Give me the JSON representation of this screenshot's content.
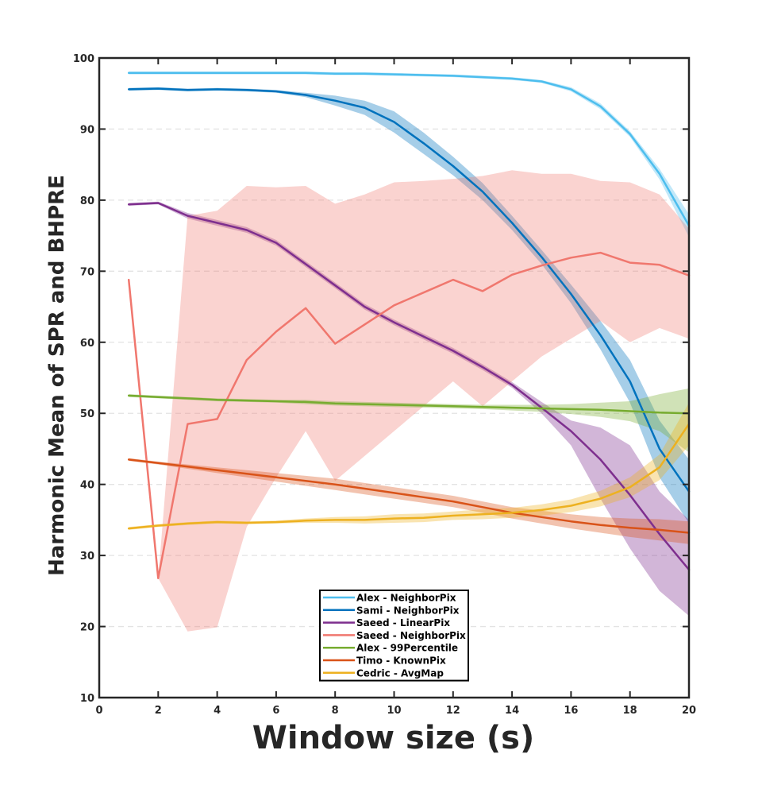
{
  "chart_data": {
    "type": "line",
    "xlabel": "Window size (s)",
    "ylabel": "Harmonic Mean of SPR and BHPRE",
    "xlim": [
      0,
      20
    ],
    "ylim": [
      10,
      100
    ],
    "xticks": [
      "0",
      "2",
      "4",
      "6",
      "8",
      "10",
      "12",
      "14",
      "16",
      "18",
      "20"
    ],
    "yticks": [
      "10",
      "20",
      "30",
      "40",
      "50",
      "60",
      "70",
      "80",
      "90",
      "100"
    ],
    "grid": "horizontal dashed",
    "legend_position": "bottom-center",
    "x": [
      1,
      2,
      3,
      4,
      5,
      6,
      7,
      8,
      9,
      10,
      11,
      12,
      13,
      14,
      15,
      16,
      17,
      18,
      19,
      20
    ],
    "series": [
      {
        "name": "Alex - NeighborPix",
        "color": "#4DBEEE",
        "values": [
          97.9,
          97.9,
          97.9,
          97.9,
          97.9,
          97.9,
          97.9,
          97.8,
          97.8,
          97.7,
          97.6,
          97.5,
          97.3,
          97.1,
          96.7,
          95.6,
          93.2,
          89.3,
          83.7,
          76.4
        ],
        "lower": [
          97.7,
          97.7,
          97.7,
          97.7,
          97.7,
          97.7,
          97.7,
          97.6,
          97.6,
          97.5,
          97.4,
          97.3,
          97.1,
          96.9,
          96.5,
          95.3,
          92.8,
          88.9,
          82.9,
          74.8
        ],
        "upper": [
          98.1,
          98.1,
          98.1,
          98.1,
          98.1,
          98.1,
          98.1,
          98.0,
          98.0,
          97.9,
          97.8,
          97.7,
          97.5,
          97.3,
          96.9,
          95.9,
          93.6,
          89.7,
          84.4,
          78.0
        ]
      },
      {
        "name": "Sami - NeighborPix",
        "color": "#0072BD",
        "values": [
          95.6,
          95.7,
          95.5,
          95.6,
          95.5,
          95.3,
          94.8,
          94.0,
          93.0,
          91.0,
          88.0,
          84.8,
          81.2,
          76.8,
          72.0,
          66.8,
          61.0,
          54.5,
          45.0,
          39.0
        ],
        "lower": [
          95.4,
          95.5,
          95.3,
          95.4,
          95.3,
          95.1,
          94.5,
          93.3,
          92.0,
          89.5,
          86.5,
          83.5,
          80.0,
          75.8,
          71.0,
          65.5,
          59.0,
          51.5,
          41.0,
          34.5
        ],
        "upper": [
          95.8,
          95.9,
          95.7,
          95.8,
          95.7,
          95.5,
          95.1,
          94.7,
          94.0,
          92.5,
          89.5,
          86.1,
          82.4,
          77.8,
          73.0,
          68.1,
          63.0,
          57.5,
          49.0,
          43.5
        ]
      },
      {
        "name": "Saeed - LinearPix",
        "color": "#7E2F8E",
        "values": [
          79.4,
          79.6,
          77.8,
          76.8,
          75.8,
          74.0,
          71.0,
          68.0,
          65.0,
          62.8,
          60.8,
          58.8,
          56.5,
          54.0,
          50.8,
          47.5,
          43.5,
          38.5,
          33.0,
          28.0
        ],
        "lower": [
          79.2,
          79.4,
          77.4,
          76.4,
          75.4,
          73.6,
          70.6,
          67.6,
          64.6,
          62.4,
          60.4,
          58.4,
          56.1,
          53.6,
          50.0,
          45.5,
          38.0,
          31.0,
          25.0,
          21.5
        ],
        "upper": [
          79.6,
          79.8,
          78.2,
          77.2,
          76.2,
          74.4,
          71.4,
          68.4,
          65.4,
          63.2,
          61.2,
          59.2,
          56.9,
          54.4,
          51.6,
          49.0,
          48.0,
          45.5,
          39.0,
          35.0
        ]
      },
      {
        "name": "Saeed - NeighborPix",
        "color": "#F0776E",
        "values": [
          68.8,
          26.8,
          48.5,
          49.2,
          57.5,
          61.5,
          64.8,
          59.8,
          62.5,
          65.2,
          67.0,
          68.8,
          67.2,
          69.5,
          70.8,
          71.9,
          72.6,
          71.2,
          70.9,
          69.4
        ],
        "lower": [
          68.8,
          26.8,
          19.3,
          19.9,
          34.0,
          41.0,
          47.5,
          40.5,
          44.0,
          47.5,
          51.0,
          54.5,
          51.0,
          54.5,
          58.0,
          60.5,
          63.0,
          60.0,
          62.0,
          60.5
        ],
        "upper": [
          68.8,
          26.8,
          77.8,
          78.5,
          82.0,
          81.8,
          82.0,
          79.5,
          80.8,
          82.5,
          82.7,
          83.0,
          83.4,
          84.2,
          83.7,
          83.7,
          82.7,
          82.5,
          80.8,
          76.0
        ]
      },
      {
        "name": "Alex - 99Percentile",
        "color": "#77AC30",
        "values": [
          52.5,
          52.3,
          52.1,
          51.9,
          51.8,
          51.7,
          51.6,
          51.4,
          51.3,
          51.2,
          51.1,
          51.0,
          50.9,
          50.8,
          50.7,
          50.6,
          50.5,
          50.3,
          50.1,
          50.0
        ],
        "lower": [
          52.3,
          52.1,
          51.9,
          51.7,
          51.6,
          51.5,
          51.3,
          51.1,
          51.0,
          50.9,
          50.8,
          50.7,
          50.6,
          50.4,
          50.2,
          49.9,
          49.5,
          48.9,
          47.5,
          44.5
        ],
        "upper": [
          52.7,
          52.5,
          52.3,
          52.1,
          52.0,
          51.9,
          51.9,
          51.7,
          51.6,
          51.5,
          51.4,
          51.3,
          51.2,
          51.2,
          51.2,
          51.3,
          51.5,
          51.7,
          52.7,
          53.5
        ]
      },
      {
        "name": "Timo - KnownPix",
        "color": "#D95319",
        "values": [
          43.5,
          43.0,
          42.5,
          42.0,
          41.5,
          41.0,
          40.5,
          40.0,
          39.4,
          38.8,
          38.2,
          37.6,
          36.8,
          36.0,
          35.4,
          34.8,
          34.3,
          33.9,
          33.6,
          33.2
        ],
        "lower": [
          43.3,
          42.8,
          42.2,
          41.6,
          41.0,
          40.4,
          39.8,
          39.2,
          38.6,
          38.0,
          37.4,
          36.8,
          36.0,
          35.2,
          34.5,
          33.8,
          33.2,
          32.6,
          32.1,
          31.6
        ],
        "upper": [
          43.7,
          43.2,
          42.8,
          42.4,
          42.0,
          41.6,
          41.2,
          40.8,
          40.2,
          39.6,
          39.0,
          38.4,
          37.6,
          36.8,
          36.3,
          35.8,
          35.4,
          35.2,
          35.1,
          34.8
        ]
      },
      {
        "name": "Cedric - AvgMap",
        "color": "#EDB120",
        "values": [
          33.8,
          34.2,
          34.5,
          34.7,
          34.6,
          34.7,
          34.9,
          35.0,
          35.0,
          35.2,
          35.3,
          35.6,
          35.8,
          36.0,
          36.4,
          37.0,
          38.0,
          39.6,
          42.4,
          48.5
        ],
        "lower": [
          33.6,
          34.0,
          34.3,
          34.5,
          34.4,
          34.5,
          34.6,
          34.6,
          34.5,
          34.6,
          34.7,
          35.0,
          35.1,
          35.3,
          35.6,
          36.1,
          36.9,
          38.2,
          40.6,
          45.5
        ],
        "upper": [
          34.0,
          34.4,
          34.7,
          34.9,
          34.8,
          34.9,
          35.2,
          35.4,
          35.5,
          35.8,
          35.9,
          36.2,
          36.5,
          36.7,
          37.2,
          37.9,
          39.1,
          41.0,
          44.2,
          51.5
        ]
      }
    ]
  }
}
